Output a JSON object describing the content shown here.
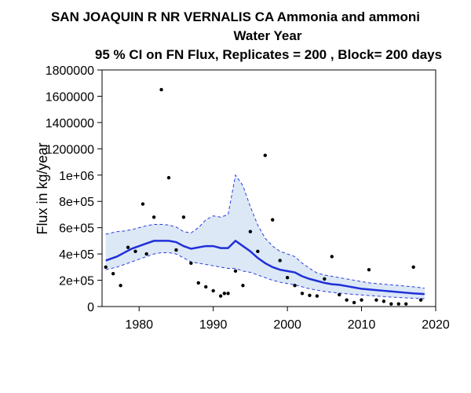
{
  "chart_data": {
    "type": "line",
    "title_lines": [
      "SAN JOAQUIN R NR VERNALIS CA   Ammonia and ammoni",
      "Water Year",
      "95 % CI on FN Flux, Replicates = 200 , Block= 200 days"
    ],
    "xlabel": "",
    "ylabel": "Flux in kg/year",
    "xlim": [
      1975,
      2020
    ],
    "ylim": [
      0,
      1800000
    ],
    "x_ticks": [
      1980,
      1990,
      2000,
      2010,
      2020
    ],
    "x_tick_labels": [
      "1980",
      "1990",
      "2000",
      "2010",
      "2020"
    ],
    "y_ticks": [
      0,
      200000,
      400000,
      600000,
      800000,
      1000000,
      1200000,
      1400000,
      1600000,
      1800000
    ],
    "y_tick_labels": [
      "0",
      "2e+05",
      "4e+05",
      "6e+05",
      "8e+05",
      "1e+06",
      "1200000",
      "1400000",
      "1600000",
      "1800000"
    ],
    "grid": false,
    "colors": {
      "line": "#1f2fd9",
      "band_fill": "#dce8f5",
      "band_edge": "#2a3de0",
      "points": "#000000"
    },
    "series": [
      {
        "role": "flow-normalized flux",
        "x": [
          1975.5,
          1977,
          1978,
          1979,
          1980,
          1981,
          1982,
          1983,
          1984,
          1985,
          1986,
          1987,
          1988,
          1989,
          1990,
          1991,
          1992,
          1993,
          1994,
          1995,
          1996,
          1997,
          1998,
          1999,
          2000,
          2001,
          2002,
          2003,
          2004,
          2005,
          2006,
          2007,
          2008,
          2009,
          2010,
          2011,
          2012,
          2013,
          2014,
          2015,
          2016,
          2017,
          2018.5
        ],
        "y": [
          350000,
          380000,
          410000,
          440000,
          460000,
          480000,
          500000,
          500000,
          500000,
          490000,
          460000,
          440000,
          450000,
          460000,
          460000,
          445000,
          445000,
          500000,
          460000,
          420000,
          370000,
          330000,
          300000,
          280000,
          270000,
          260000,
          230000,
          210000,
          195000,
          180000,
          170000,
          165000,
          155000,
          145000,
          135000,
          130000,
          125000,
          120000,
          115000,
          110000,
          105000,
          100000,
          95000
        ]
      },
      {
        "role": "ci-upper",
        "x": [
          1975.5,
          1977,
          1978,
          1979,
          1980,
          1981,
          1982,
          1983,
          1984,
          1985,
          1986,
          1987,
          1988,
          1989,
          1990,
          1991,
          1992,
          1993,
          1994,
          1995,
          1996,
          1997,
          1998,
          1999,
          2000,
          2001,
          2002,
          2003,
          2004,
          2005,
          2006,
          2007,
          2008,
          2009,
          2010,
          2011,
          2012,
          2013,
          2014,
          2015,
          2016,
          2017,
          2018.5
        ],
        "y": [
          550000,
          570000,
          575000,
          585000,
          600000,
          615000,
          625000,
          625000,
          620000,
          605000,
          570000,
          560000,
          600000,
          660000,
          690000,
          680000,
          700000,
          1000000,
          920000,
          760000,
          620000,
          520000,
          460000,
          420000,
          400000,
          380000,
          330000,
          290000,
          255000,
          240000,
          230000,
          220000,
          210000,
          200000,
          190000,
          180000,
          175000,
          170000,
          165000,
          160000,
          155000,
          150000,
          140000
        ]
      },
      {
        "role": "ci-lower",
        "x": [
          1975.5,
          1977,
          1978,
          1979,
          1980,
          1981,
          1982,
          1983,
          1984,
          1985,
          1986,
          1987,
          1988,
          1989,
          1990,
          1991,
          1992,
          1993,
          1994,
          1995,
          1996,
          1997,
          1998,
          1999,
          2000,
          2001,
          2002,
          2003,
          2004,
          2005,
          2006,
          2007,
          2008,
          2009,
          2010,
          2011,
          2012,
          2013,
          2014,
          2015,
          2016,
          2017,
          2018.5
        ],
        "y": [
          280000,
          300000,
          320000,
          340000,
          360000,
          380000,
          400000,
          410000,
          410000,
          400000,
          370000,
          340000,
          330000,
          320000,
          310000,
          300000,
          290000,
          290000,
          270000,
          260000,
          240000,
          220000,
          200000,
          185000,
          175000,
          165000,
          150000,
          135000,
          125000,
          115000,
          108000,
          102000,
          97000,
          92000,
          88000,
          84000,
          80000,
          76000,
          72000,
          69000,
          66000,
          63000,
          60000
        ]
      },
      {
        "role": "annual flux observations",
        "type": "scatter",
        "x": [
          1975.5,
          1976.5,
          1977.5,
          1978.5,
          1979.5,
          1980.5,
          1981,
          1982,
          1983,
          1984,
          1985,
          1986,
          1987,
          1988,
          1989,
          1990,
          1991,
          1991.5,
          1992,
          1993,
          1994,
          1995,
          1996,
          1997,
          1998,
          1999,
          2000,
          2001,
          2002,
          2003,
          2004,
          2005,
          2006,
          2007,
          2008,
          2009,
          2010,
          2011,
          2012,
          2013,
          2014,
          2015,
          2016,
          2017,
          2018
        ],
        "y": [
          300000,
          250000,
          160000,
          450000,
          420000,
          780000,
          400000,
          680000,
          1650000,
          980000,
          430000,
          680000,
          330000,
          180000,
          150000,
          120000,
          80000,
          100000,
          100000,
          270000,
          160000,
          570000,
          420000,
          1150000,
          660000,
          350000,
          220000,
          160000,
          100000,
          85000,
          80000,
          210000,
          380000,
          90000,
          50000,
          30000,
          50000,
          280000,
          50000,
          40000,
          20000,
          20000,
          20000,
          300000,
          50000
        ]
      }
    ]
  }
}
